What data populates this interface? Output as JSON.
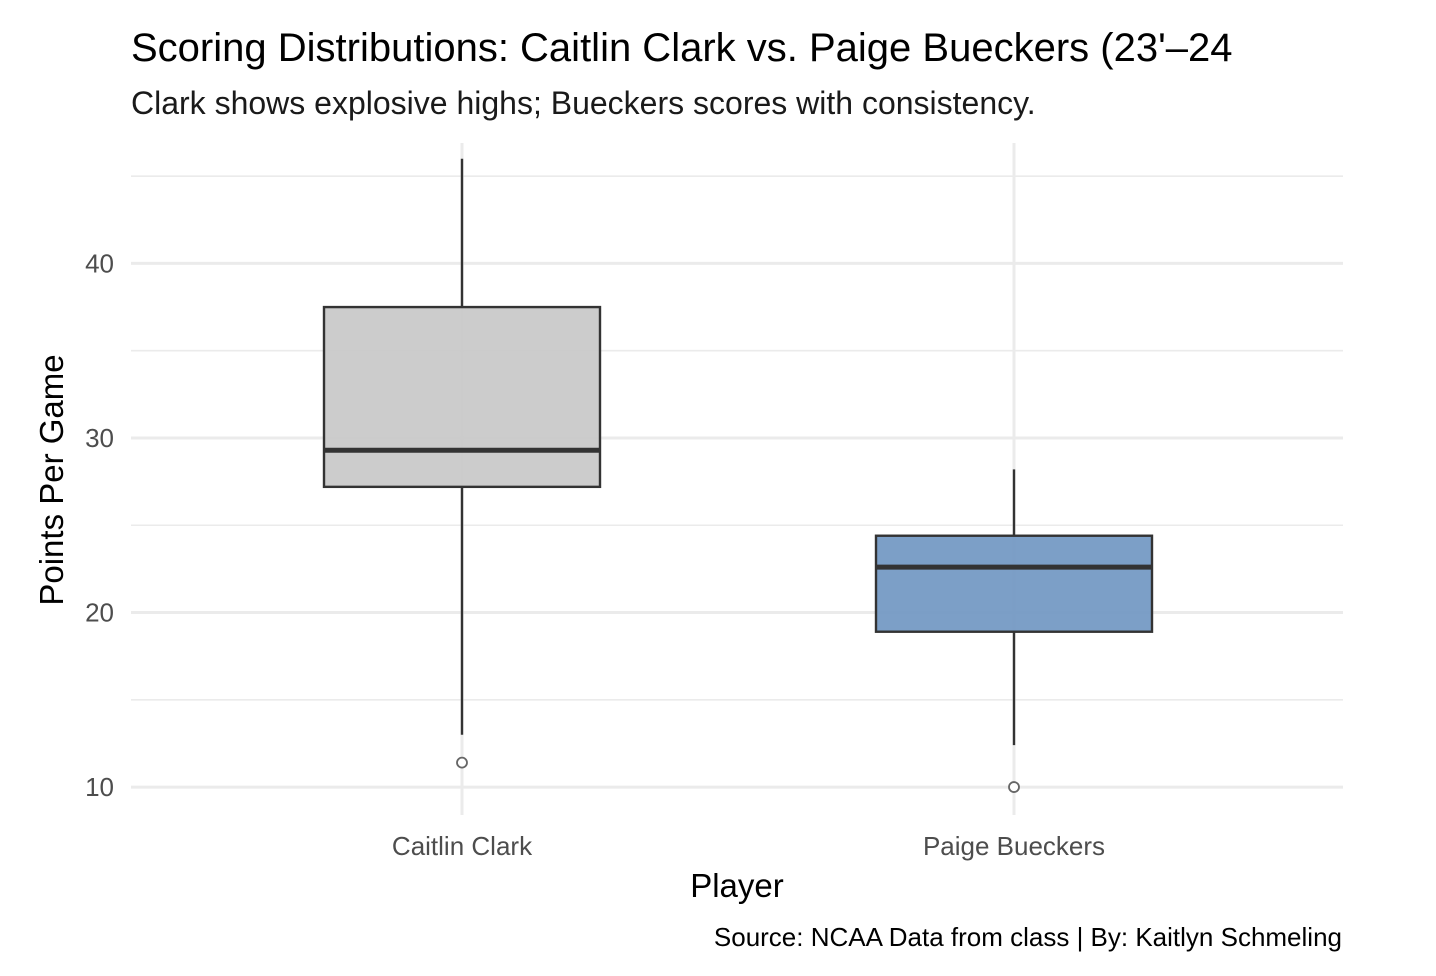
{
  "chart_data": {
    "type": "box",
    "title": "Scoring Distributions: Caitlin Clark vs. Paige Bueckers (23'–24",
    "subtitle": "Clark shows explosive highs; Bueckers scores with consistency.",
    "xlabel": "Player",
    "ylabel": "Points Per Game",
    "caption": "Source: NCAA Data from class | By: Kaitlyn Schmeling",
    "categories": [
      "Caitlin Clark",
      "Paige Bueckers"
    ],
    "y_ticks": [
      10,
      20,
      30,
      40
    ],
    "y_tick_labels": [
      "10",
      "20",
      "30",
      "40"
    ],
    "ylim": [
      8.4,
      46.9
    ],
    "grid": true,
    "boxes": [
      {
        "category": "Caitlin Clark",
        "whisker_low": 13,
        "q1": 27.2,
        "median": 29.3,
        "q3": 37.5,
        "whisker_high": 46,
        "outliers": [
          11.4
        ],
        "fill": "#c8c8c8"
      },
      {
        "category": "Paige Bueckers",
        "whisker_low": 12.4,
        "q1": 18.9,
        "median": 22.6,
        "q3": 24.4,
        "whisker_high": 28.2,
        "outliers": [
          10
        ],
        "fill": "#7197c2"
      }
    ],
    "colors": {
      "grid": "#ebebeb",
      "box_outline": "#333333",
      "outlier_stroke": "#666666"
    }
  }
}
